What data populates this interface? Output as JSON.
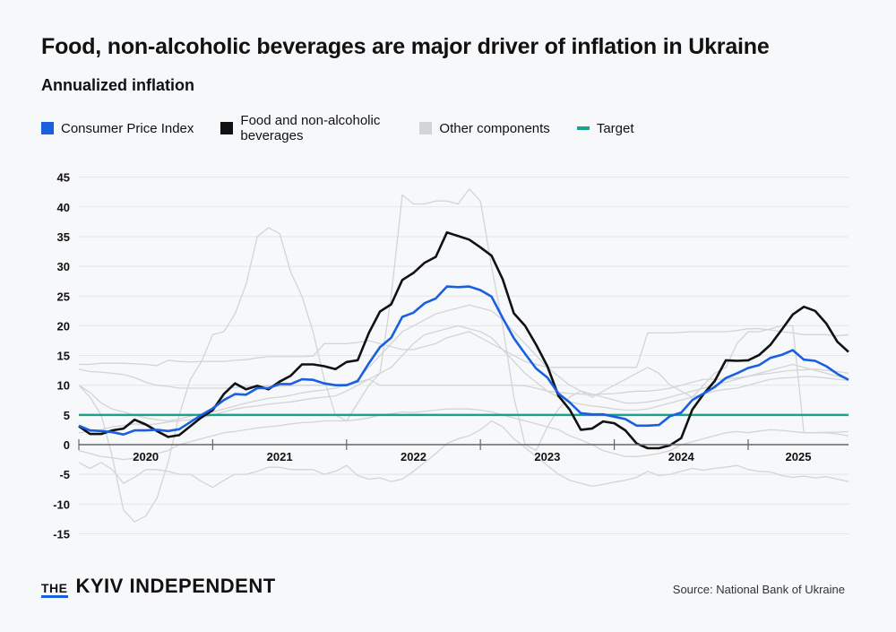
{
  "title": "Food, non-alcoholic beverages are major driver of inflation in Ukraine",
  "subtitle": "Annualized inflation",
  "legend": [
    {
      "label": "Consumer Price Index",
      "color": "#1a5fe0"
    },
    {
      "label": "Food and non-alcoholic beverages",
      "color": "#111111"
    },
    {
      "label": "Other components",
      "color": "#d2d4d6"
    },
    {
      "label": "Target",
      "color": "#1aa38a"
    }
  ],
  "logo": {
    "prefix": "THE",
    "name": "KYIV INDEPENDENT"
  },
  "source": "Source: National Bank of Ukraine",
  "chart_data": {
    "type": "line",
    "title": "Food, non-alcoholic beverages are major driver of inflation in Ukraine",
    "subtitle": "Annualized inflation",
    "x_start": "2020-01",
    "x_end": "2025-10",
    "x_frequency": "monthly",
    "x_tick_labels": [
      "2020",
      "2021",
      "2022",
      "2023",
      "2024",
      "2025"
    ],
    "y_ticks": [
      45,
      40,
      35,
      30,
      25,
      20,
      15,
      10,
      5,
      0,
      -5,
      -10,
      -15
    ],
    "ylim": [
      -15,
      45
    ],
    "grid": true,
    "legend_position": "top",
    "target": 5,
    "series": [
      {
        "name": "Consumer Price Index",
        "color": "#1a5fe0",
        "values": [
          3.2,
          2.4,
          2.3,
          2.1,
          1.7,
          2.4,
          2.4,
          2.5,
          2.3,
          2.6,
          3.8,
          5.0,
          6.1,
          7.5,
          8.5,
          8.4,
          9.5,
          9.5,
          10.2,
          10.2,
          11.0,
          10.9,
          10.3,
          10.0,
          10.0,
          10.7,
          13.7,
          16.4,
          18.0,
          21.5,
          22.2,
          23.8,
          24.6,
          26.6,
          26.5,
          26.6,
          26.0,
          24.9,
          21.3,
          17.9,
          15.3,
          12.8,
          11.3,
          8.6,
          7.1,
          5.3,
          5.1,
          5.1,
          4.7,
          4.3,
          3.2,
          3.2,
          3.3,
          4.8,
          5.4,
          7.5,
          8.6,
          9.7,
          11.2,
          12.0,
          12.9,
          13.4,
          14.6,
          15.1,
          15.9,
          14.3,
          14.1,
          13.2,
          11.9,
          10.9
        ]
      },
      {
        "name": "Food and non-alcoholic beverages",
        "color": "#111111",
        "values": [
          3.1,
          1.8,
          1.8,
          2.4,
          2.7,
          4.2,
          3.4,
          2.3,
          1.3,
          1.6,
          3.1,
          4.6,
          5.8,
          8.5,
          10.3,
          9.3,
          9.9,
          9.3,
          10.6,
          11.6,
          13.5,
          13.5,
          13.2,
          12.7,
          13.9,
          14.2,
          18.8,
          22.4,
          23.6,
          27.7,
          28.9,
          30.6,
          31.6,
          35.7,
          35.1,
          34.5,
          33.2,
          31.8,
          27.8,
          22.1,
          20.0,
          16.8,
          13.2,
          8.2,
          5.9,
          2.5,
          2.7,
          3.9,
          3.6,
          2.4,
          0.2,
          -0.6,
          -0.6,
          -0.1,
          1.1,
          5.9,
          8.5,
          10.7,
          14.2,
          14.1,
          14.2,
          15.1,
          16.8,
          19.3,
          21.9,
          23.2,
          22.5,
          20.4,
          17.3,
          15.6
        ]
      },
      {
        "group": "Other components",
        "color": "#d2d4d6",
        "values": [
          10,
          8,
          5,
          -2,
          -11,
          -13,
          -12,
          -9,
          -3,
          5,
          11,
          14,
          18.5,
          19,
          22,
          27,
          35,
          36.5,
          35.5,
          29,
          25,
          19,
          11,
          5,
          4,
          7,
          10,
          12,
          25,
          42,
          40.5,
          40.5,
          41,
          41,
          40.5,
          43,
          41,
          30,
          20,
          8,
          0,
          -1,
          3,
          6,
          8,
          9,
          8,
          9,
          10,
          11,
          12,
          13,
          12,
          10,
          9,
          8,
          10,
          12,
          13,
          17,
          19,
          19,
          19.5,
          20,
          20,
          2,
          2,
          2,
          1.8,
          1.5
        ]
      },
      {
        "group": "Other components",
        "color": "#d2d4d6",
        "values": [
          13.5,
          13.5,
          13.7,
          13.7,
          13.7,
          13.6,
          13.5,
          13.3,
          14.2,
          14,
          13.9,
          14,
          14,
          14,
          14.2,
          14.3,
          14.6,
          14.8,
          14.8,
          14.8,
          14.8,
          14.9,
          17,
          17,
          17,
          17.2,
          17.5,
          17,
          16.5,
          16,
          16,
          16.5,
          17,
          18,
          18.5,
          19,
          18,
          17,
          16,
          15,
          14,
          13.5,
          13,
          13,
          13,
          13,
          13,
          13,
          13,
          13,
          13,
          18.8,
          18.8,
          18.8,
          18.9,
          19,
          19,
          19,
          19,
          19.2,
          19.5,
          19.5,
          19.3,
          19,
          18.8,
          18.5,
          18.5,
          18.5,
          18.3,
          18.5
        ]
      },
      {
        "group": "Other components",
        "color": "#d2d4d6",
        "values": [
          12.7,
          12.3,
          12.2,
          12,
          11.8,
          11.3,
          10.5,
          10,
          9.8,
          9.5,
          9.5,
          9.5,
          9.5,
          9.5,
          9.6,
          9.8,
          9.9,
          9.9,
          9.8,
          9.9,
          10,
          10,
          10,
          10,
          10.2,
          10.5,
          11,
          10,
          10,
          10,
          10,
          10,
          10,
          10,
          10,
          10,
          10,
          10,
          10,
          10,
          9.9,
          9.5,
          9,
          8.8,
          8.6,
          8.5,
          8.4,
          8.5,
          8.6,
          8.8,
          9,
          9,
          9.2,
          9.5,
          10,
          10.5,
          11,
          11,
          11,
          11.2,
          11.5,
          11.8,
          12,
          12.3,
          12.5,
          12.6,
          12.7,
          12.5,
          12.3,
          12
        ]
      },
      {
        "group": "Other components",
        "color": "#d2d4d6",
        "values": [
          10,
          8.8,
          7,
          6,
          5.5,
          5,
          4.5,
          4.2,
          4,
          4.3,
          4.8,
          5.2,
          5.5,
          6,
          6.5,
          7,
          7.4,
          7.8,
          8,
          8.3,
          8.7,
          9,
          9.2,
          9.5,
          10,
          11,
          13,
          15,
          17,
          19,
          20,
          21,
          22,
          22.5,
          23,
          23.5,
          23,
          22.5,
          21,
          19,
          17,
          15,
          13,
          11.5,
          10,
          9,
          8.5,
          8,
          7.5,
          7,
          7,
          7.2,
          7.5,
          8,
          8.5,
          9,
          9.5,
          10,
          10.5,
          11,
          11.5,
          12,
          12.5,
          13,
          13.5,
          13,
          12.5,
          12,
          11.5,
          11
        ]
      },
      {
        "group": "Other components",
        "color": "#d2d4d6",
        "values": [
          2,
          2.2,
          2.5,
          3,
          3.2,
          3.5,
          3.3,
          3.5,
          3.8,
          4,
          4.2,
          4.5,
          5,
          5.5,
          6,
          6.3,
          6.5,
          6.8,
          7,
          7.2,
          7.5,
          7.8,
          8,
          8.2,
          9,
          10,
          11,
          12,
          13,
          15,
          17,
          18.5,
          19,
          19.5,
          20,
          19.5,
          19,
          18,
          16,
          14,
          12,
          10.5,
          9,
          8,
          7.2,
          6.8,
          6.5,
          6.3,
          6,
          5.8,
          5.8,
          6,
          6.5,
          7,
          7.5,
          8,
          8.5,
          9,
          9.3,
          9.5,
          10,
          10.5,
          11,
          11.2,
          11.3,
          11.5,
          11.4,
          11.2,
          11,
          10.8
        ]
      },
      {
        "group": "Other components",
        "color": "#d2d4d6",
        "values": [
          -1,
          -1.5,
          -2,
          -2.2,
          -2.5,
          -2.3,
          -2,
          -1.5,
          -1,
          0,
          0.5,
          1,
          1.5,
          2,
          2.2,
          2.5,
          2.8,
          3,
          3.2,
          3.5,
          3.7,
          3.8,
          4,
          4,
          4,
          4.2,
          4.5,
          5,
          5.2,
          5.5,
          5.4,
          5.6,
          5.8,
          6,
          6,
          6,
          5.8,
          5.5,
          5,
          4.5,
          4,
          3.5,
          3,
          2.5,
          1.5,
          0.8,
          0,
          -1,
          -1.5,
          -2,
          -2,
          -1.8,
          -1.5,
          -1,
          0,
          0.5,
          1,
          1.5,
          2,
          2.2,
          2,
          2.3,
          2.5,
          2.4,
          2.2,
          2,
          2,
          2.1,
          2.1,
          2.2
        ]
      },
      {
        "group": "Other components",
        "color": "#d2d4d6",
        "values": [
          -3,
          -4,
          -3,
          -4.2,
          -6.5,
          -5.5,
          -4.2,
          -4.2,
          -4.5,
          -5,
          -5,
          -6.2,
          -7.2,
          -6,
          -5,
          -5,
          -4.5,
          -3.8,
          -3.8,
          -4.2,
          -4.2,
          -4.2,
          -5,
          -4.5,
          -3.5,
          -5.2,
          -5.8,
          -5.6,
          -6.2,
          -5.8,
          -4.5,
          -3,
          -1.5,
          0.2,
          1,
          1.5,
          2.5,
          4,
          3,
          1,
          -0.5,
          -2,
          -3.5,
          -5,
          -6,
          -6.5,
          -7,
          -6.7,
          -6.3,
          -6,
          -5.5,
          -4.5,
          -5.2,
          -5,
          -4.5,
          -4,
          -4.3,
          -4,
          -3.8,
          -3.5,
          -4.2,
          -4.5,
          -4.6,
          -5.2,
          -5.5,
          -5.3,
          -5.6,
          -5.4,
          -5.8,
          -6.2
        ]
      }
    ]
  }
}
